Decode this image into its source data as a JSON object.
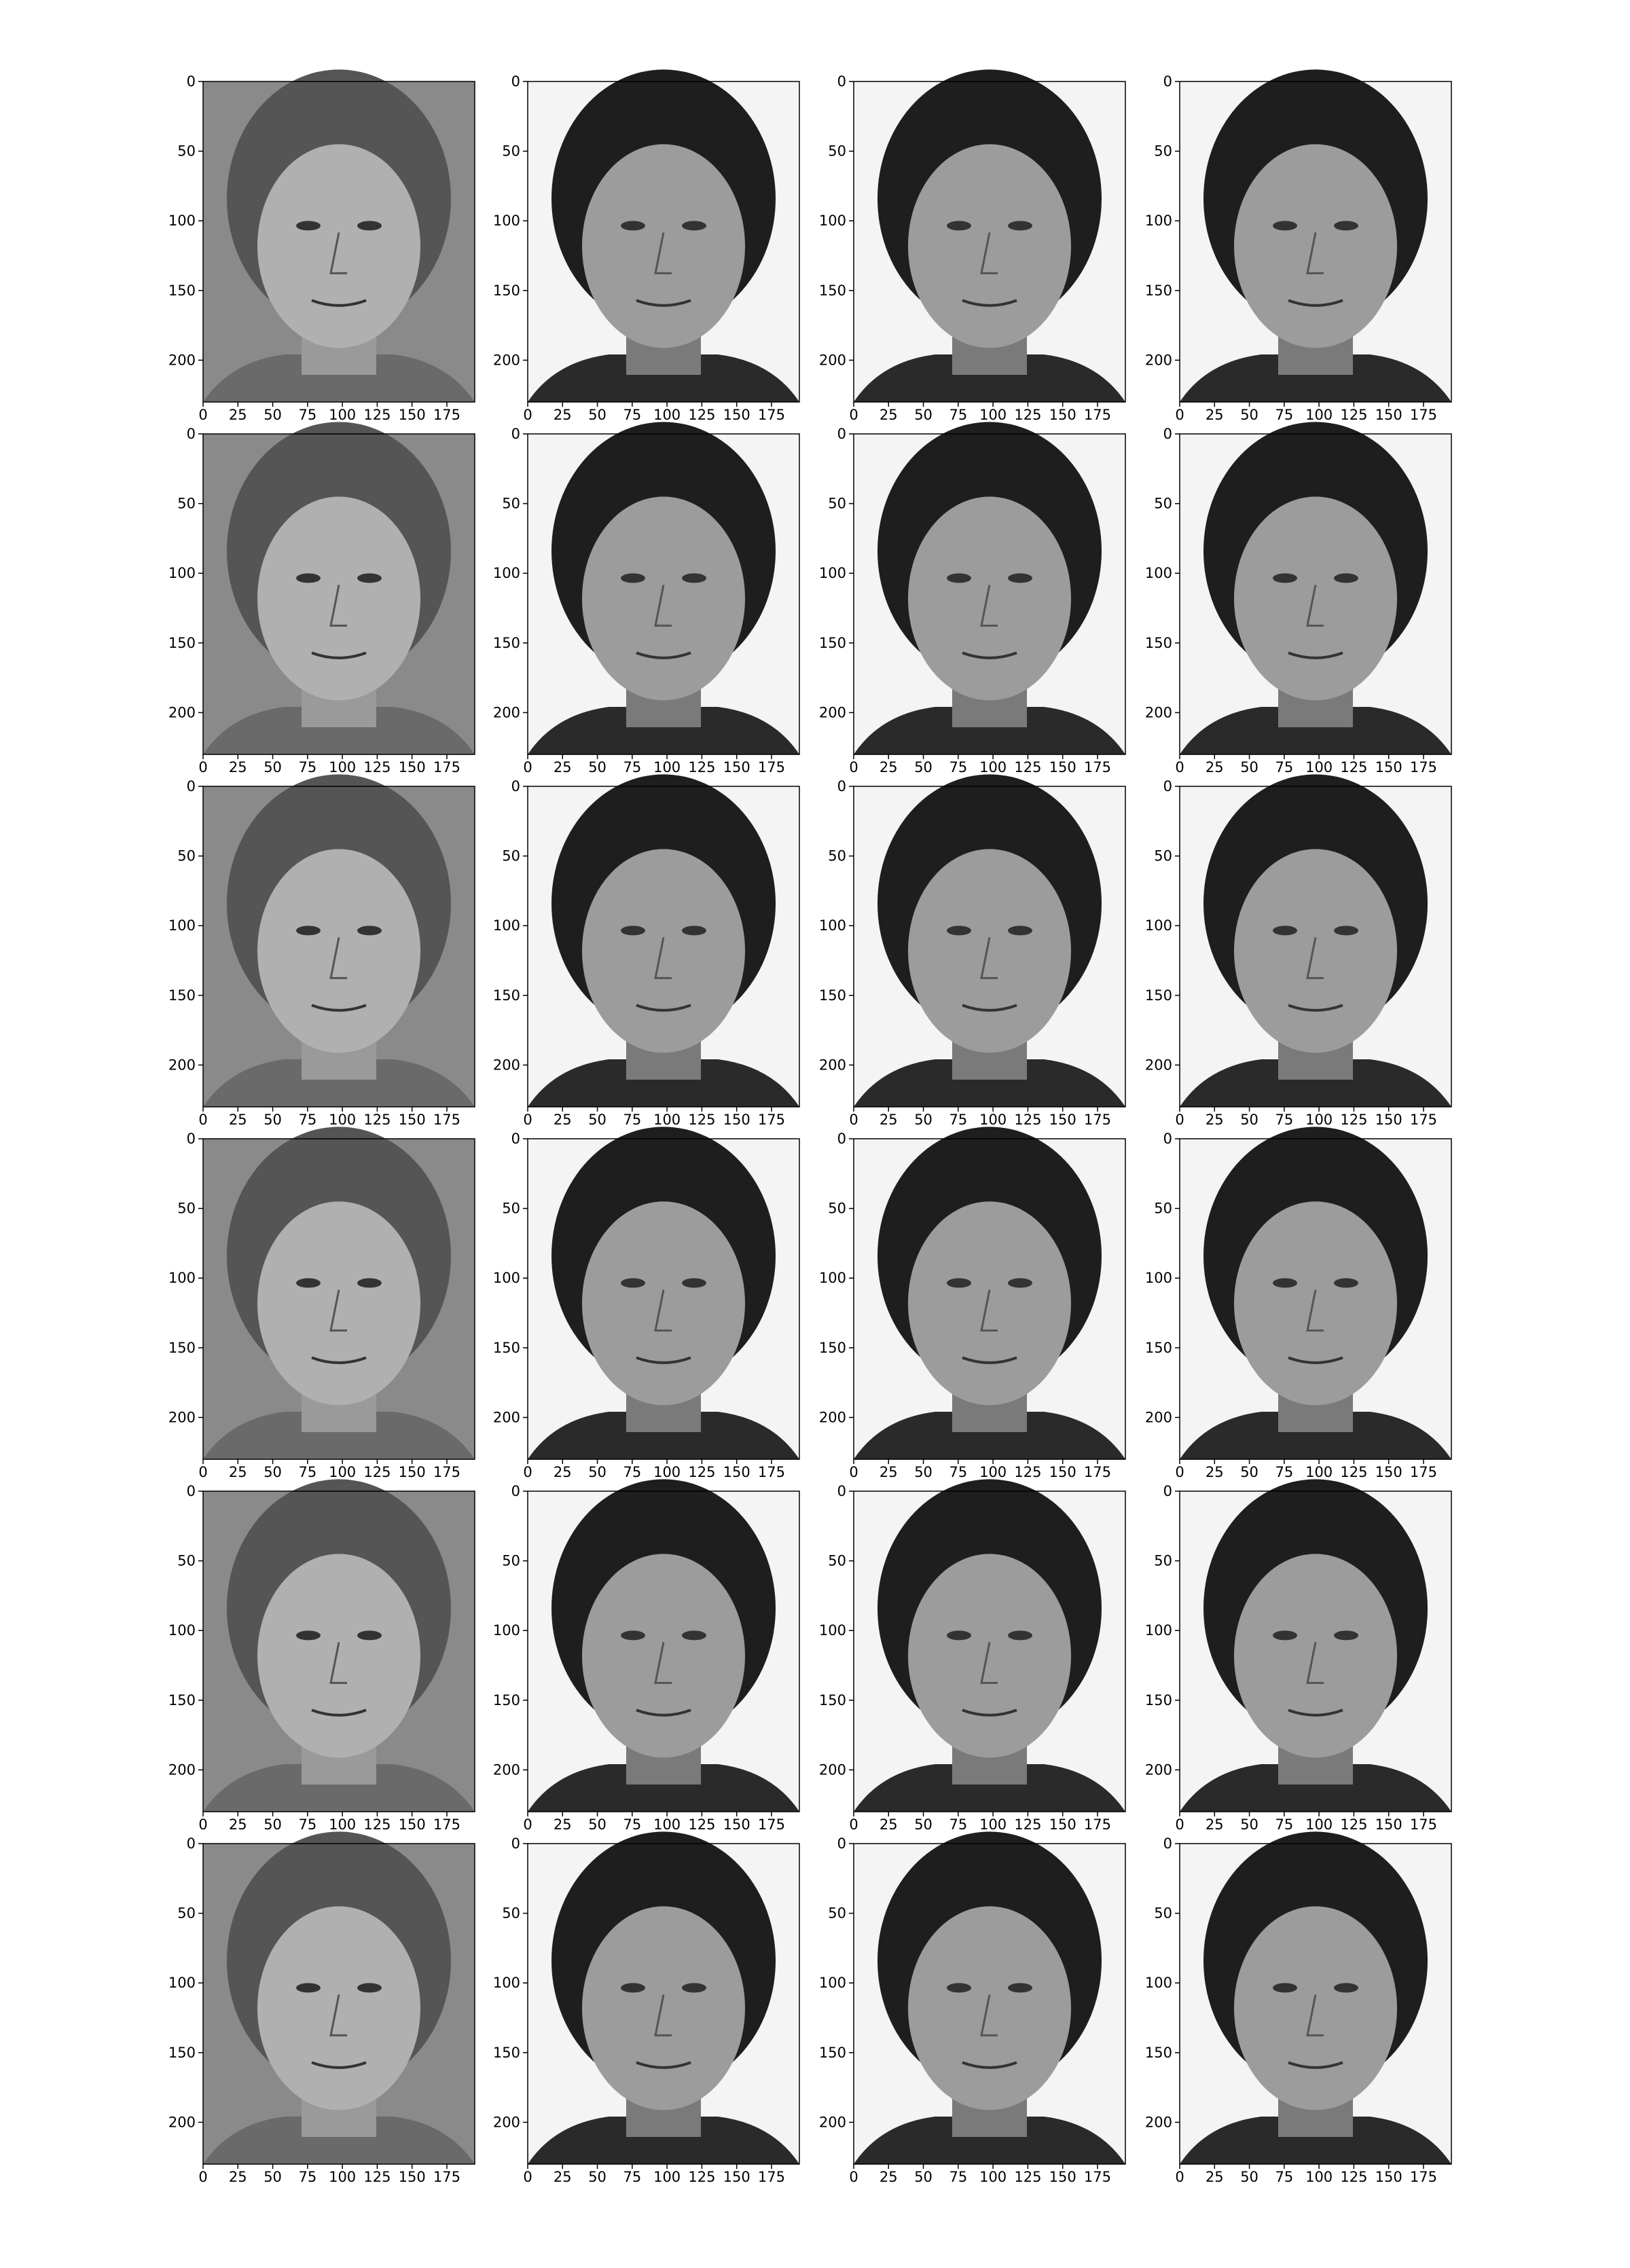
{
  "panel_axes": {
    "xticks": [
      0,
      25,
      50,
      75,
      100,
      125,
      150,
      175
    ],
    "yticks": [
      0,
      50,
      100,
      150,
      200
    ],
    "xlim": [
      0,
      195
    ],
    "ylim": [
      0,
      230
    ]
  }
}
